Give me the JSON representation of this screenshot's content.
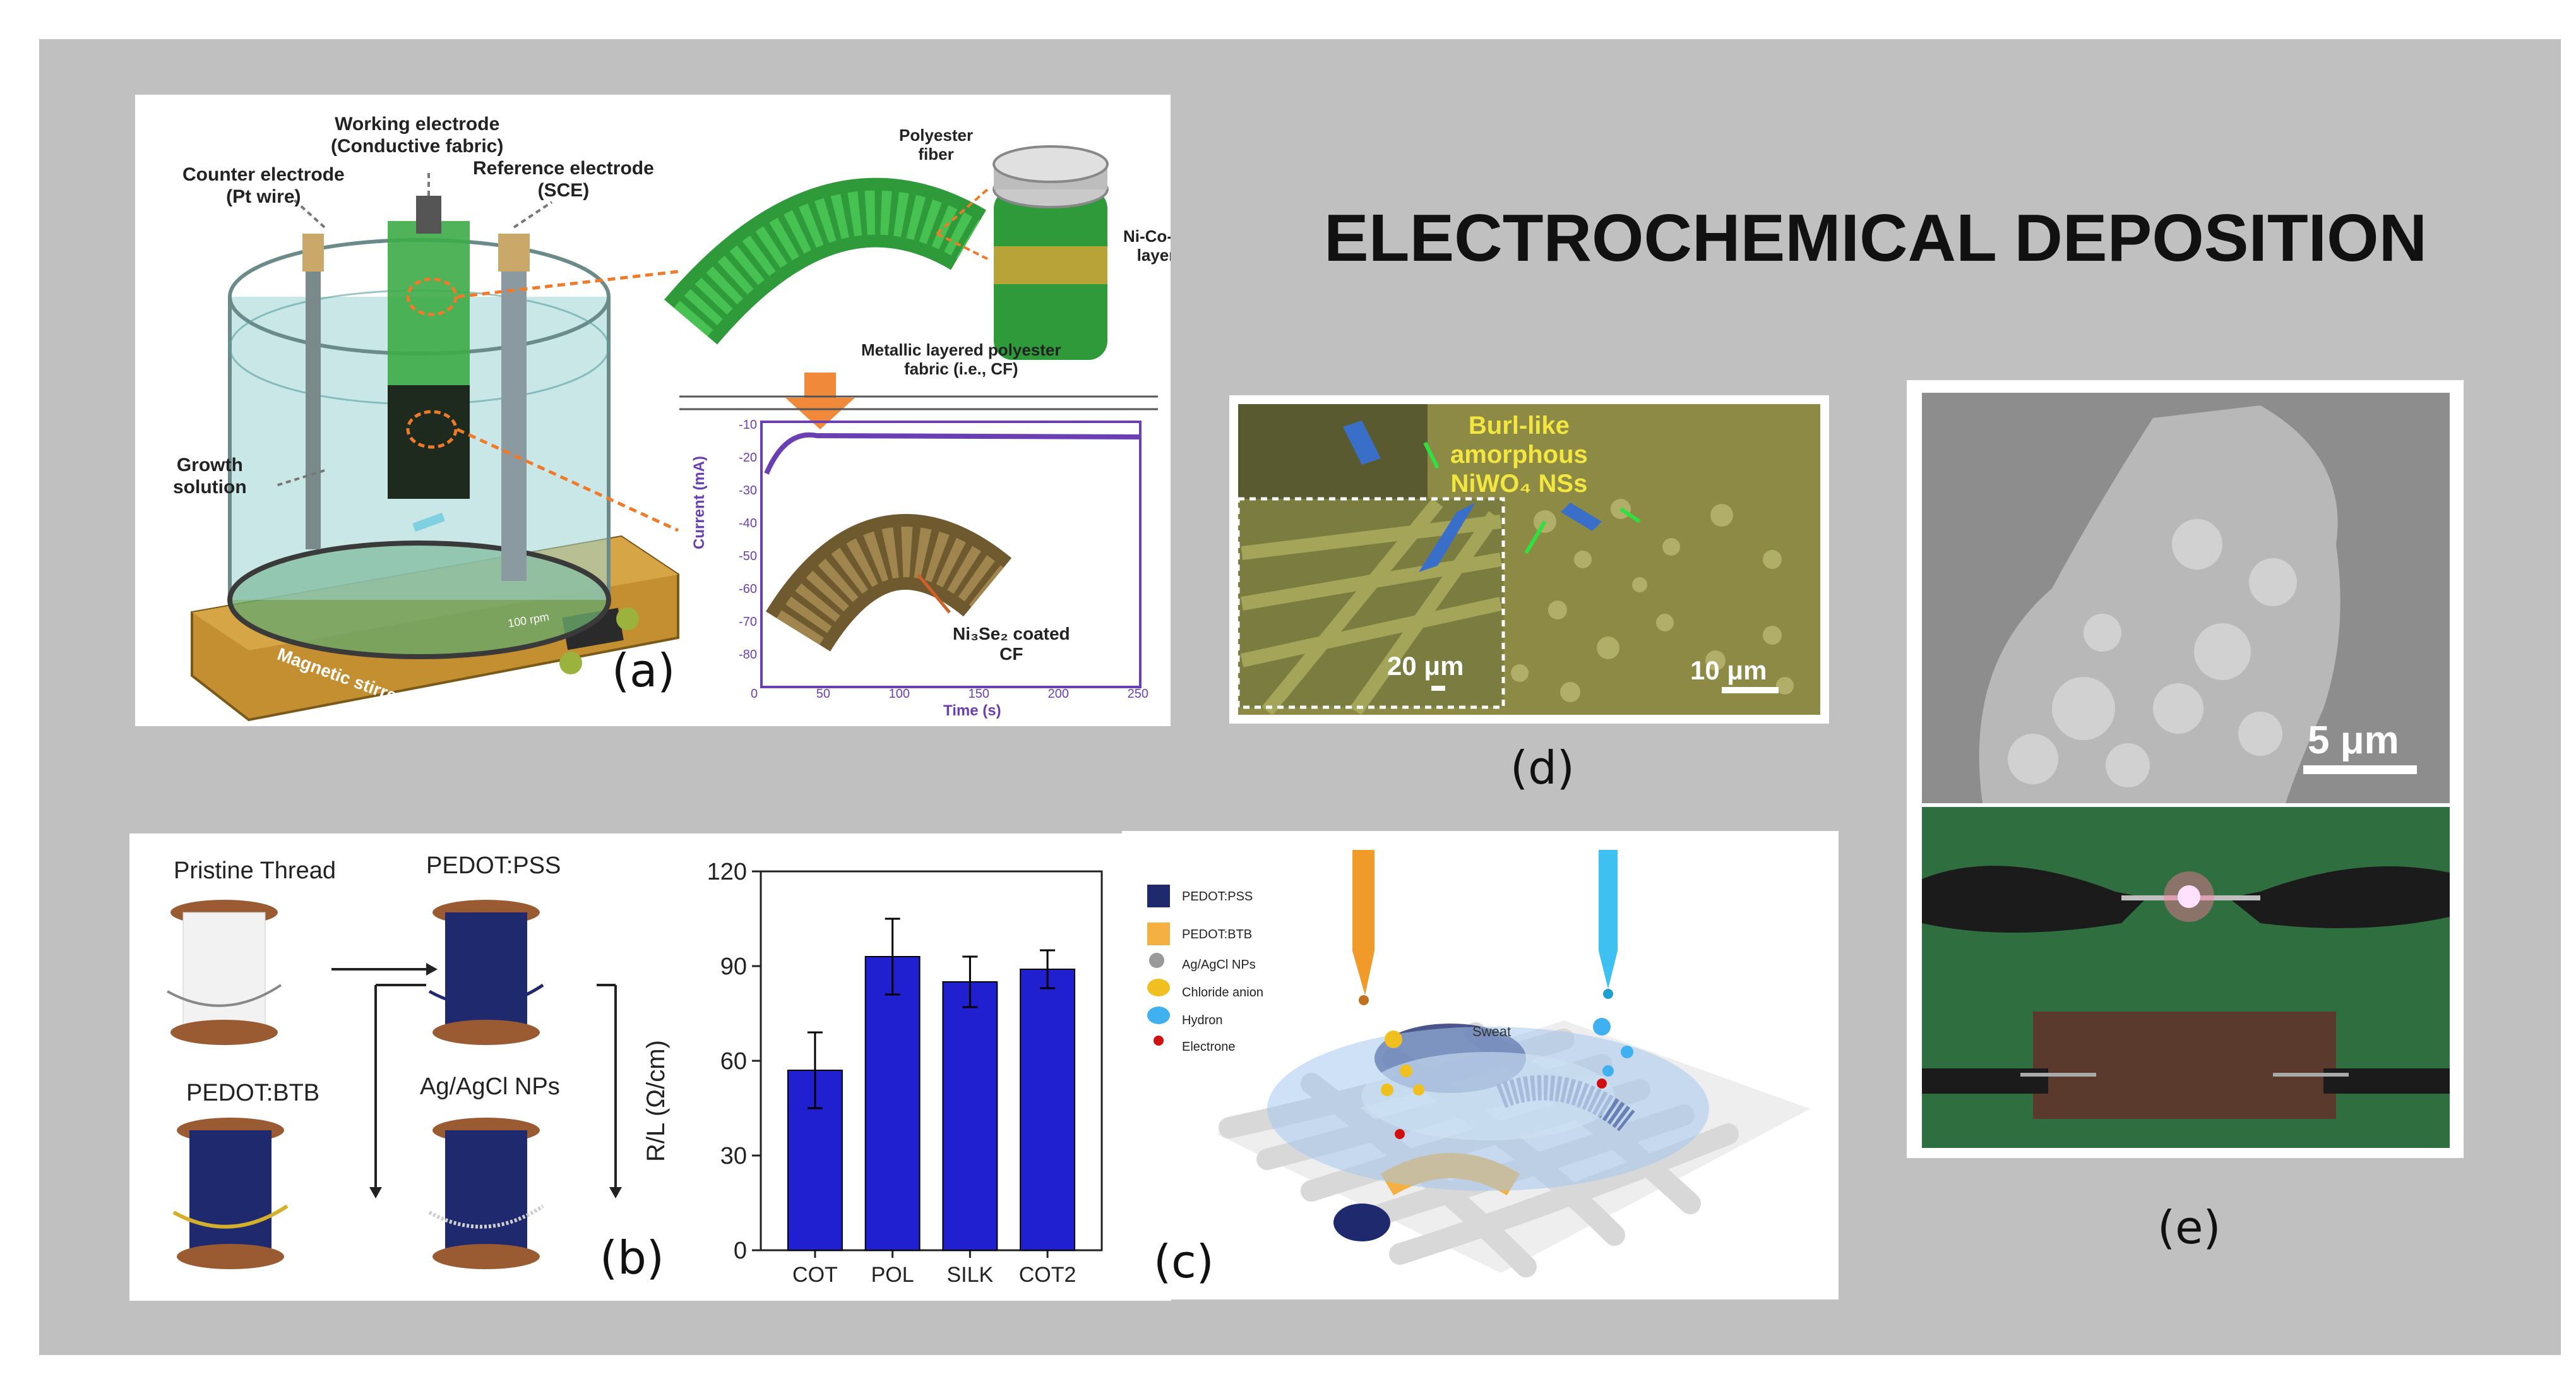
{
  "title": "ELECTROCHEMICAL DEPOSITION",
  "panel_labels": {
    "a": "(a)",
    "b": "(b)",
    "c": "(c)",
    "d": "(d)",
    "e": "(e)"
  },
  "panel_a": {
    "working_electrode": "Working electrode",
    "working_electrode_sub": "(Conductive fabric)",
    "counter_electrode": "Counter electrode",
    "counter_electrode_sub": "(Pt wire)",
    "reference_electrode": "Reference electrode",
    "reference_electrode_sub": "(SCE)",
    "growth_solution": "Growth",
    "growth_solution_sub": "solution",
    "stirrer": "Magnetic stirrer",
    "stirrer_display": "100 rpm",
    "polyester": "Polyester",
    "polyester_sub": "fiber",
    "ni_layer": "Ni-Co-Ni",
    "ni_layer_sub": "layer",
    "metallic_fabric": "Metallic layered polyester",
    "metallic_fabric_sub": "fabric (i.e., CF)",
    "coated_label": "Ni₃Se₂ coated",
    "coated_label_sub": "CF",
    "ylabel": "Current (mA)",
    "xlabel": "Time (s)",
    "yticks": [
      "-10",
      "-20",
      "-30",
      "-40",
      "-50",
      "-60",
      "-70",
      "-80"
    ],
    "xticks": [
      "0",
      "50",
      "100",
      "150",
      "200",
      "250"
    ]
  },
  "panel_b": {
    "pristine": "Pristine Thread",
    "pedot_pss": "PEDOT:PSS",
    "pedot_btb": "PEDOT:BTB",
    "agcl": "Ag/AgCl NPs"
  },
  "panel_c": {
    "legend": [
      "PEDOT:PSS",
      "PEDOT:BTB",
      "Ag/AgCl NPs",
      "Chloride anion",
      "Hydron",
      "Electrone"
    ],
    "sweat": "Sweat"
  },
  "panel_d": {
    "annotation_1": "Burl-like",
    "annotation_2": "amorphous",
    "annotation_3": "NiWO₄ NSs",
    "scale_left": "20 μm",
    "scale_right": "10 μm"
  },
  "panel_e": {
    "scale": "5 μm"
  },
  "chart_data": {
    "type": "bar",
    "categories": [
      "COT",
      "POL",
      "SILK",
      "COT2"
    ],
    "values": [
      57,
      93,
      85,
      89
    ],
    "errors": [
      12,
      12,
      8,
      6
    ],
    "ylabel": "R/L (Ω/cm)",
    "ylim": [
      0,
      120
    ],
    "yticks": [
      "0",
      "30",
      "60",
      "90",
      "120"
    ],
    "bar_color": "#2020d0",
    "grid": false
  },
  "colors": {
    "background": "#c0c0c0",
    "pedot_pss": "#1f2a6e",
    "pedot_btb": "#f4b040",
    "fabric_green": "#2e9a3a",
    "stirrer_gold": "#c89a3a",
    "arrow_orange": "#f07a28",
    "current_curve": "#6a3fb3"
  }
}
